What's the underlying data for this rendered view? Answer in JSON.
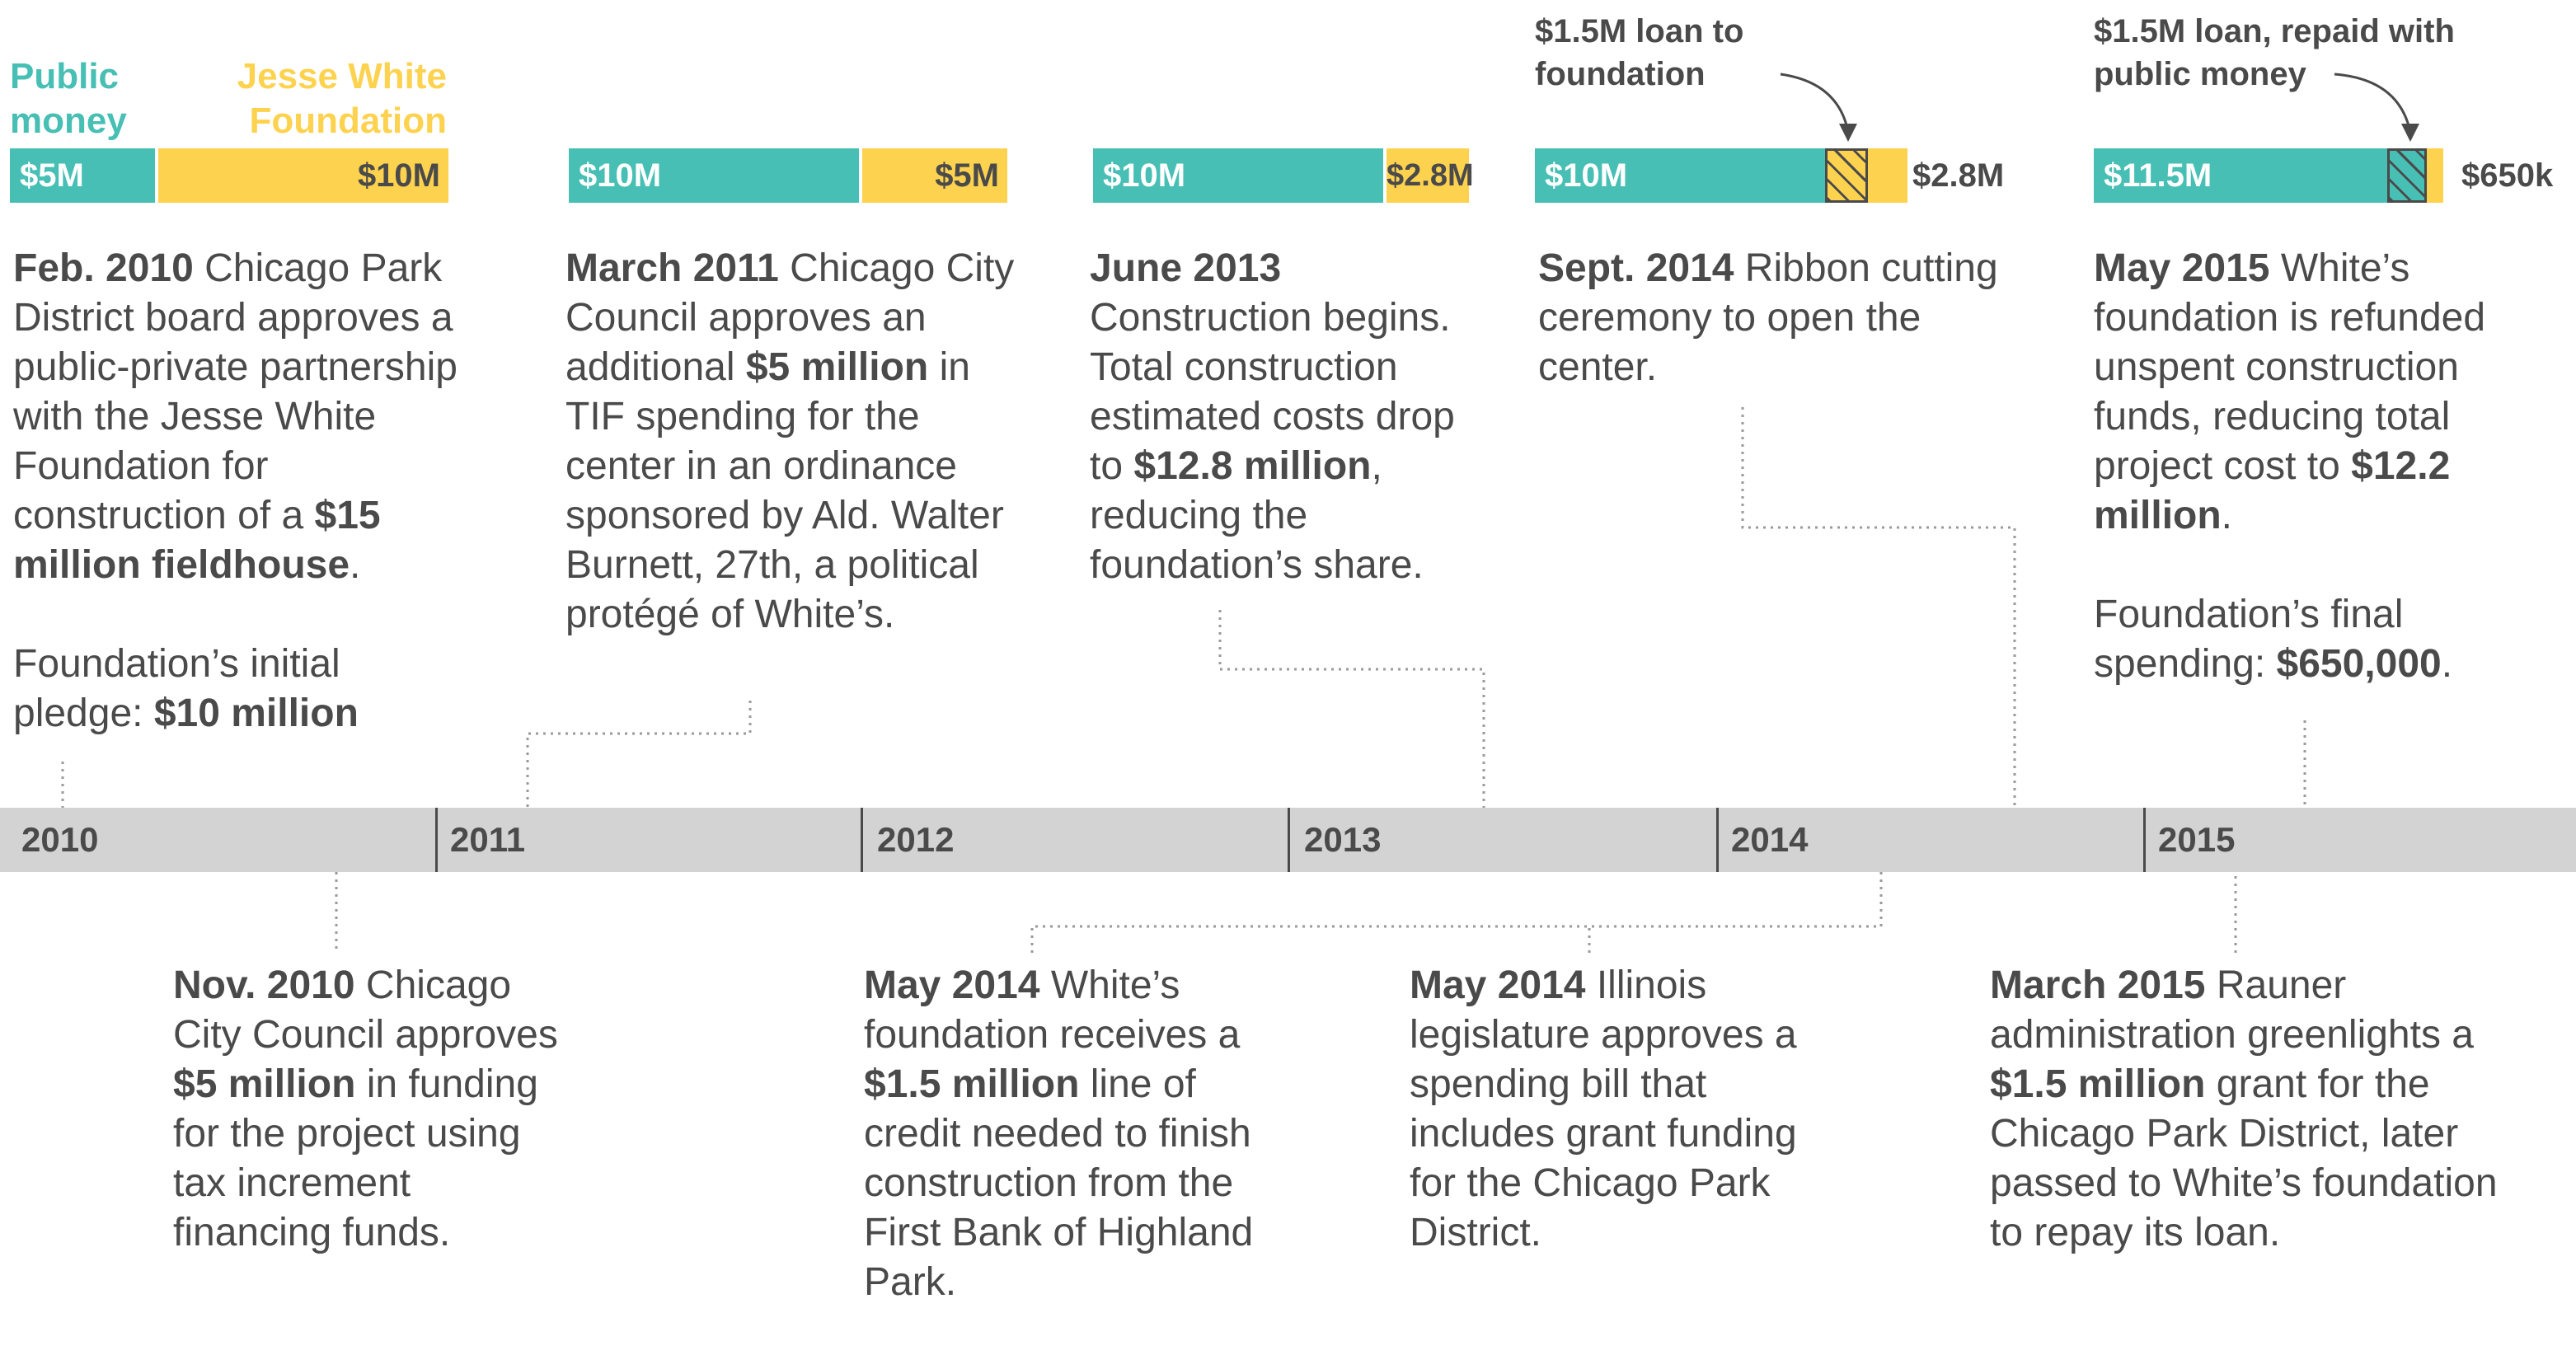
{
  "legend": {
    "public": "Public money",
    "foundation": "Jesse White Foundation"
  },
  "colors": {
    "public": "#47bfb4",
    "foundation": "#fdd24f",
    "text": "#4a4a4a",
    "axis": "#d3d3d3"
  },
  "bars": [
    {
      "public_label": "$5M",
      "foundation_label": "$10M",
      "public_value_m": 5,
      "foundation_value_m": 10
    },
    {
      "public_label": "$10M",
      "foundation_label": "$5M",
      "public_value_m": 10,
      "foundation_value_m": 5
    },
    {
      "public_label": "$10M",
      "foundation_label": "$2.8M",
      "public_value_m": 10,
      "foundation_value_m": 2.8
    },
    {
      "public_label": "$10M",
      "foundation_label": "$2.8M",
      "loan_note": "$1.5M loan to foundation",
      "public_value_m": 10,
      "foundation_value_m": 2.8,
      "loan_value_m": 1.5
    },
    {
      "public_label": "$11.5M",
      "foundation_label": "$650k",
      "loan_note": "$1.5M loan, repaid with public money",
      "public_value_m": 11.5,
      "foundation_value_m": 0.65,
      "loan_value_m": 1.5
    }
  ],
  "axis": {
    "years": [
      "2010",
      "2011",
      "2012",
      "2013",
      "2014",
      "2015"
    ]
  },
  "events_top": [
    {
      "date": "Feb. 2010",
      "t1": " Chicago Park District board approves a public-private partnership with the Jesse White Foundation for construction of a ",
      "b1": "$15 million fieldhouse",
      "t2": ".",
      "p2a": "Foundation’s initial pledge: ",
      "p2b": "$10 million"
    },
    {
      "date": "March 2011",
      "t1": " Chicago City Council approves an additional ",
      "b1": "$5 million",
      "t2": " in TIF spending for the center in an ordinance sponsored by Ald. Walter Burnett, 27th, a political protégé of White’s."
    },
    {
      "date": "June 2013",
      "t1": "Construction begins. Total construction estimated costs drop to ",
      "b1": "$12.8 million",
      "t2": ", reducing the foundation’s share."
    },
    {
      "date": "Sept. 2014",
      "t1": " Ribbon cutting ceremony to open the center.",
      "b1": "",
      "t2": ""
    },
    {
      "date": "May 2015",
      "t1": " White’s foundation is refunded unspent construction funds, reducing total project cost to ",
      "b1": "$12.2 million",
      "t2": ".",
      "p2a": "Foundation’s final spending: ",
      "p2b": "$650,000",
      "p2c": "."
    }
  ],
  "events_bottom": [
    {
      "date": "Nov. 2010",
      "t1": " Chicago City Council approves ",
      "b1": "$5 million",
      "t2": " in funding for the project using tax increment financing funds."
    },
    {
      "date": "May 2014",
      "t1": " White’s foundation receives a ",
      "b1": "$1.5 million",
      "t2": " line of credit needed to finish construction from the First Bank of Highland Park."
    },
    {
      "date": "May 2014",
      "t1": " Illinois legislature approves a spending bill that includes grant funding for the Chicago Park District.",
      "b1": "",
      "t2": ""
    },
    {
      "date": "March 2015",
      "t1": " Rauner administration greenlights a ",
      "b1": "$1.5 million",
      "t2": " grant for the Chicago Park District, later passed to White’s foundation to repay its loan."
    }
  ]
}
